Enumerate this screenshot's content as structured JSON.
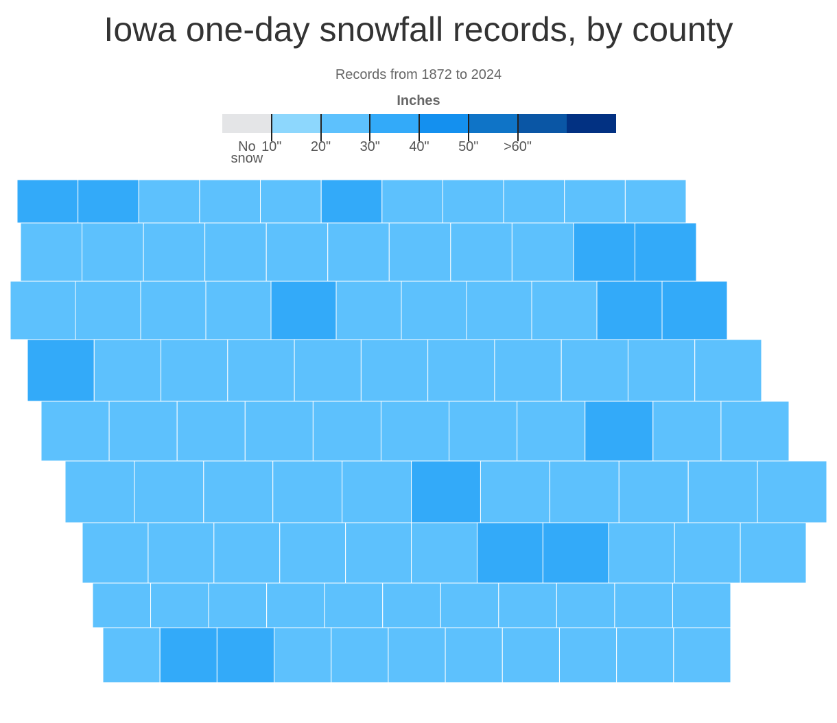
{
  "title": "Iowa one-day snowfall records, by county",
  "subtitle": "Records from 1872 to 2024",
  "legend": {
    "title": "Inches",
    "colors": [
      "#e4e5e7",
      "#8dd7fd",
      "#5dc1fd",
      "#33aaf9",
      "#1490ef",
      "#0f74c7",
      "#0a56a5",
      "#023182"
    ],
    "labels": [
      "No snow",
      "10\"",
      "20\"",
      "30\"",
      "40\"",
      "50\"",
      ">60\""
    ]
  },
  "regions": [
    3,
    3,
    2,
    2,
    2,
    3,
    2,
    2,
    2,
    2,
    2,
    2,
    2,
    2,
    2,
    2,
    2,
    2,
    2,
    2,
    3,
    3,
    2,
    2,
    2,
    2,
    3,
    2,
    2,
    2,
    2,
    3,
    3,
    3,
    2,
    2,
    2,
    2,
    2,
    2,
    2,
    2,
    2,
    2,
    2,
    2,
    2,
    2,
    2,
    2,
    2,
    2,
    3,
    2,
    2,
    2,
    2,
    2,
    2,
    2,
    3,
    2,
    2,
    2,
    2,
    2,
    2,
    2,
    2,
    2,
    2,
    2,
    3,
    3,
    2,
    2,
    2,
    2,
    2,
    2,
    2,
    2,
    2,
    2,
    2,
    2,
    2,
    2,
    2,
    3,
    3,
    2,
    2,
    2,
    2,
    2,
    2,
    2,
    2
  ]
}
